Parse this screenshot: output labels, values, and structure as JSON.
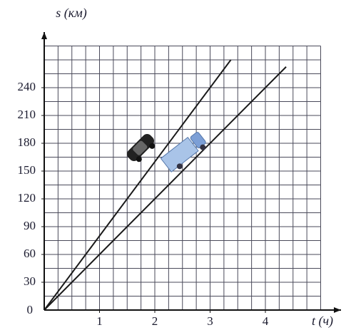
{
  "chart_data": {
    "type": "line",
    "y_label": "s (км)",
    "x_label": "t (ч)",
    "origin_label": "0",
    "series": [
      {
        "color": "#1a1a1a",
        "x": [
          0,
          3.375
        ],
        "values": [
          0,
          270
        ]
      },
      {
        "color": "#1a1a1a",
        "x": [
          0,
          4.375
        ],
        "values": [
          0,
          262.5
        ]
      }
    ],
    "xlim": [
      0,
      5
    ],
    "ylim": [
      0,
      285
    ],
    "xticks": [
      1,
      2,
      3,
      4
    ],
    "yticks": [
      30,
      60,
      90,
      120,
      150,
      180,
      210,
      240
    ],
    "x_grid_step": 0.25,
    "y_grid_step": 15,
    "grid": true
  }
}
